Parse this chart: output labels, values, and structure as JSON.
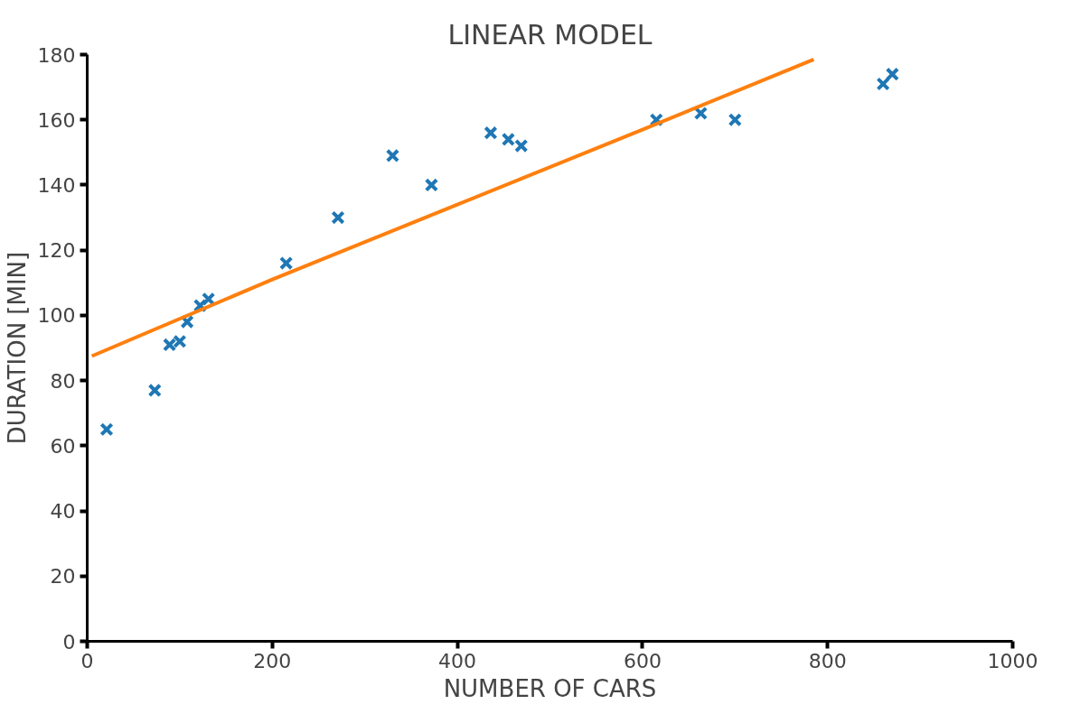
{
  "chart_data": {
    "type": "scatter",
    "title": "LINEAR MODEL",
    "xlabel": "NUMBER OF CARS",
    "ylabel": "DURATION [MIN]",
    "xlim": [
      0,
      1000
    ],
    "ylim": [
      0,
      180
    ],
    "xticks": [
      0,
      200,
      400,
      600,
      800,
      1000
    ],
    "yticks": [
      0,
      20,
      40,
      60,
      80,
      100,
      120,
      140,
      160,
      180
    ],
    "grid": false,
    "series": [
      {
        "color": "#1f77b4",
        "marker": "cross",
        "x": [
          21,
          73,
          89,
          100,
          108,
          122,
          131,
          215,
          271,
          330,
          372,
          436,
          455,
          469,
          615,
          663,
          700,
          860,
          870
        ],
        "values": [
          65,
          77,
          91,
          92,
          98,
          103,
          105,
          116,
          130,
          149,
          140,
          156,
          154,
          152,
          160,
          162,
          160,
          171,
          174
        ]
      },
      {
        "type": "line",
        "color": "#ff7f0e",
        "line_style": "solid",
        "x": [
          5,
          200,
          400,
          600,
          785
        ],
        "values": [
          87.5,
          111,
          134,
          157,
          178.5
        ]
      }
    ]
  }
}
